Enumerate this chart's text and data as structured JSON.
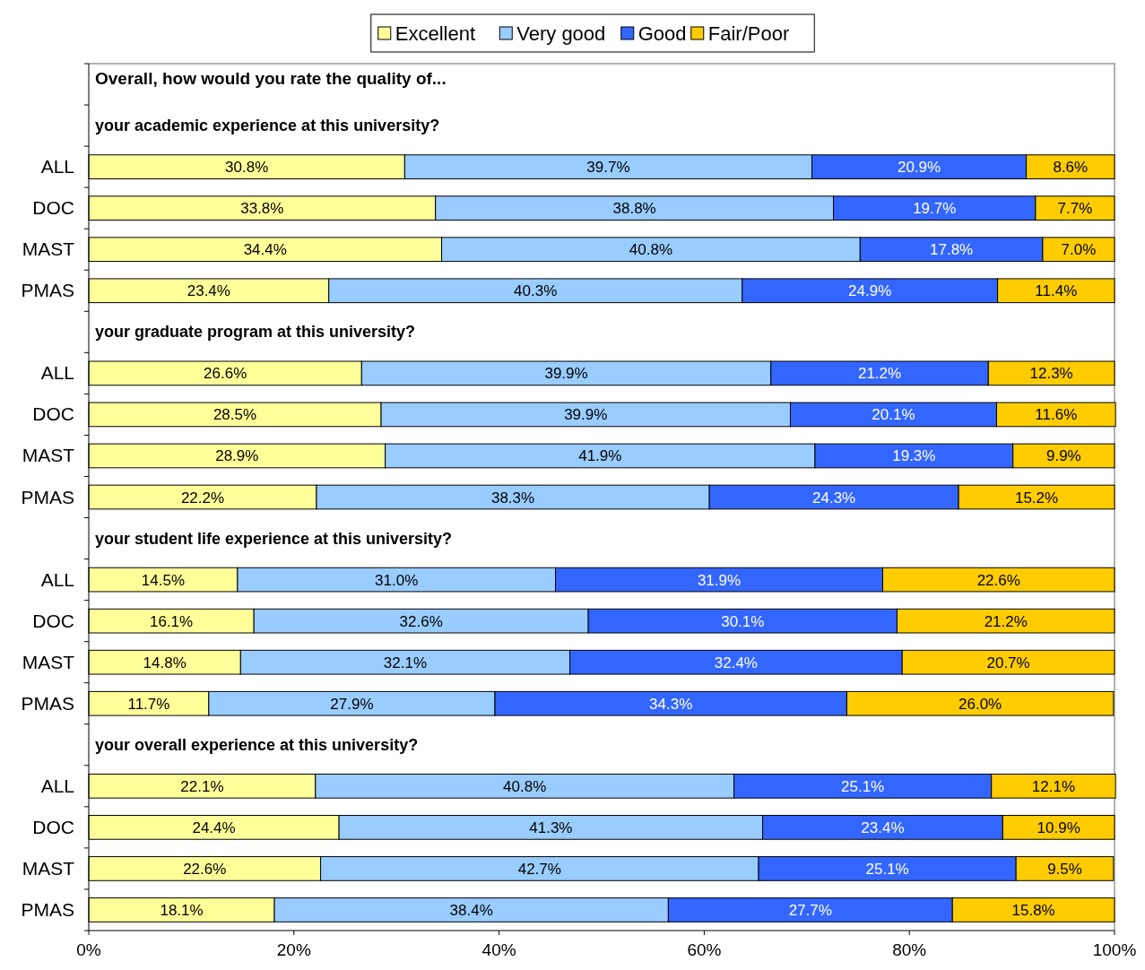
{
  "chart_data": {
    "type": "bar",
    "orientation": "horizontal",
    "stacked": true,
    "title": "Overall, how would you rate the quality of...",
    "annotations": [
      "your academic experience at this university?",
      "your graduate program at this university?",
      "your student life experience at this university?",
      "your overall experience at this university?"
    ],
    "categories": [
      null,
      null,
      "ALL",
      "DOC",
      "MAST",
      "PMAS",
      null,
      "ALL",
      "DOC",
      "MAST",
      "PMAS",
      null,
      "ALL",
      "DOC",
      "MAST",
      "PMAS",
      null,
      "ALL",
      "DOC",
      "MAST",
      "PMAS"
    ],
    "series": [
      {
        "name": "Excellent",
        "color": "#ffff99",
        "values": [
          null,
          null,
          30.8,
          33.8,
          34.4,
          23.4,
          null,
          26.6,
          28.5,
          28.9,
          22.2,
          null,
          14.5,
          16.1,
          14.8,
          11.7,
          null,
          22.1,
          24.4,
          22.6,
          18.1
        ],
        "value_labels": [
          null,
          null,
          "30.8%",
          "33.8%",
          "34.4%",
          "23.4%",
          null,
          "26.6%",
          "28.5%",
          "28.9%",
          "22.2%",
          null,
          "14.5%",
          "16.1%",
          "14.8%",
          "11.7%",
          null,
          "22.1%",
          "24.4%",
          "22.6%",
          "18.1%"
        ]
      },
      {
        "name": "Very good",
        "color": "#99ccff",
        "values": [
          null,
          null,
          39.7,
          38.8,
          40.8,
          40.3,
          null,
          39.9,
          39.9,
          41.9,
          38.3,
          null,
          31.0,
          32.6,
          32.1,
          27.9,
          null,
          40.8,
          41.3,
          42.7,
          38.4
        ],
        "value_labels": [
          null,
          null,
          "39.7%",
          "38.8%",
          "40.8%",
          "40.3%",
          null,
          "39.9%",
          "39.9%",
          "41.9%",
          "38.3%",
          null,
          "31.0%",
          "32.6%",
          "32.1%",
          "27.9%",
          null,
          "40.8%",
          "41.3%",
          "42.7%",
          "38.4%"
        ]
      },
      {
        "name": "Good",
        "color": "#3366ff",
        "values": [
          null,
          null,
          20.9,
          19.7,
          17.8,
          24.9,
          null,
          21.2,
          20.1,
          19.3,
          24.3,
          null,
          31.9,
          30.1,
          32.4,
          34.3,
          null,
          25.1,
          23.4,
          25.1,
          27.7
        ],
        "value_labels": [
          null,
          null,
          "20.9%",
          "19.7%",
          "17.8%",
          "24.9%",
          null,
          "21.2%",
          "20.1%",
          "19.3%",
          "24.3%",
          null,
          "31.9%",
          "30.1%",
          "32.4%",
          "34.3%",
          null,
          "25.1%",
          "23.4%",
          "25.1%",
          "27.7%"
        ]
      },
      {
        "name": "Fair/Poor",
        "color": "#ffcc00",
        "values": [
          null,
          null,
          8.6,
          7.7,
          7.0,
          11.4,
          null,
          12.3,
          11.6,
          9.9,
          15.2,
          null,
          22.6,
          21.2,
          20.7,
          26.0,
          null,
          12.1,
          10.9,
          9.5,
          15.8
        ],
        "value_labels": [
          null,
          null,
          "8.6%",
          "7.7%",
          "7.0%",
          "11.4%",
          null,
          "12.3%",
          "11.6%",
          "9.9%",
          "15.2%",
          null,
          "22.6%",
          "21.2%",
          "20.7%",
          "26.0%",
          null,
          "12.1%",
          "10.9%",
          "9.5%",
          "15.8%"
        ]
      }
    ],
    "xlim": [
      0,
      100
    ],
    "xticks": [
      {
        "value": 0,
        "label": "0%"
      },
      {
        "value": 20,
        "label": "20%"
      },
      {
        "value": 40,
        "label": "40%"
      },
      {
        "value": 60,
        "label": "60%"
      },
      {
        "value": 80,
        "label": "80%"
      },
      {
        "value": 100,
        "label": "100%"
      }
    ],
    "legend": "top",
    "grid": false
  }
}
